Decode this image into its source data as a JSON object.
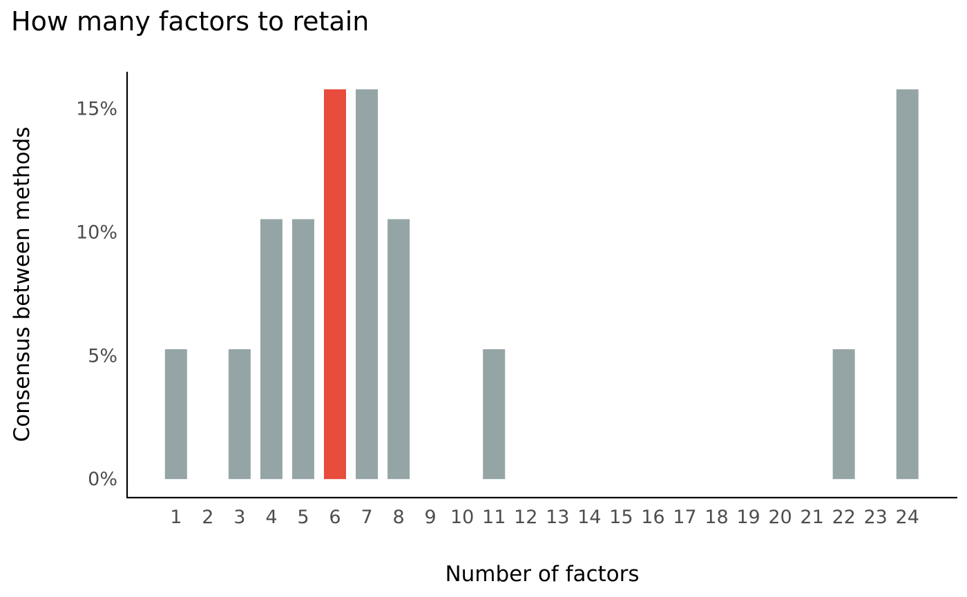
{
  "chart_data": {
    "type": "bar",
    "title": "How many factors to retain",
    "xlabel": "Number of factors",
    "ylabel": "Consensus between methods",
    "categories": [
      "1",
      "2",
      "3",
      "4",
      "5",
      "6",
      "7",
      "8",
      "9",
      "10",
      "11",
      "12",
      "13",
      "14",
      "15",
      "16",
      "17",
      "18",
      "19",
      "20",
      "21",
      "22",
      "23",
      "24"
    ],
    "values": [
      5.26,
      0,
      5.26,
      10.53,
      10.53,
      15.79,
      15.79,
      10.53,
      0,
      0,
      5.26,
      0,
      0,
      0,
      0,
      0,
      0,
      0,
      0,
      0,
      0,
      5.26,
      0,
      15.79
    ],
    "highlight_category": "6",
    "yticks": [
      0,
      5,
      10,
      15
    ],
    "ytick_labels": [
      "0%",
      "5%",
      "10%",
      "15%"
    ],
    "ylim": [
      -0.75,
      16.5
    ],
    "grid": false,
    "colors": {
      "bar": "#95a5a6",
      "highlight": "#e74c3c",
      "axis": "#000000",
      "tick_text": "#4d4d4d"
    }
  }
}
